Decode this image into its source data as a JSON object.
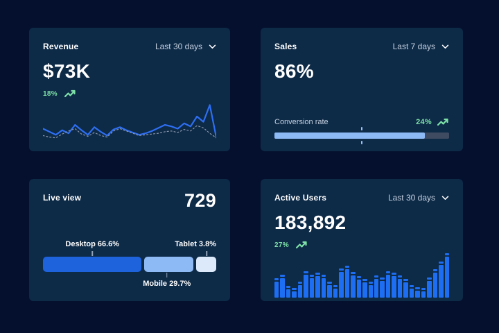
{
  "colors": {
    "page_bg": "#05102e",
    "card_bg": "#0d2a47",
    "line_blue": "#2e6ff2",
    "dotted_gray": "#8a97ab",
    "bar_blue": "#1d6ef2",
    "progress_fill": "#8db9f4",
    "progress_track": "#3f4b61",
    "green": "#7ee2a8",
    "text_primary": "#ffffff",
    "text_secondary": "#c6d2e1"
  },
  "cards": {
    "revenue": {
      "title": "Revenue",
      "range": "Last 30 days",
      "value": "$73K",
      "delta": "18%"
    },
    "sales": {
      "title": "Sales",
      "range": "Last 7 days",
      "value": "86%",
      "metric_label": "Conversion rate",
      "delta": "24%",
      "progress_pct": 86,
      "marker_pct": 50
    },
    "live_view": {
      "title": "Live view",
      "value": "729",
      "segments": [
        {
          "name": "Desktop",
          "label_text": "Desktop 66.6%",
          "value_pct": 66.6,
          "display_width_pct": 57,
          "color": "#1e62dc",
          "label_position": "above",
          "label_align": "center",
          "tick_center_pct": 28.5
        },
        {
          "name": "Mobile",
          "label_text": "Mobile 29.7%",
          "value_pct": 29.7,
          "display_width_pct": 28.5,
          "color": "#8db9f4",
          "label_position": "below",
          "label_align": "center",
          "tick_center_pct": 71.5
        },
        {
          "name": "Tablet",
          "label_text": "Tablet 3.8%",
          "value_pct": 3.8,
          "display_width_pct": 11.5,
          "color": "#dce9fb",
          "label_position": "above",
          "label_align": "right",
          "tick_center_pct": 94.5
        }
      ]
    },
    "active_users": {
      "title": "Active Users",
      "range": "Last 30 days",
      "value": "183,892",
      "delta": "27%"
    }
  },
  "chart_data": [
    {
      "type": "line",
      "title": "Revenue, last 30 days",
      "ylim": [
        0,
        100
      ],
      "grid": false,
      "legend": "none",
      "series": [
        {
          "name": "current",
          "style": "solid",
          "color": "#2e6ff2",
          "values": [
            30,
            22,
            14,
            26,
            18,
            40,
            26,
            14,
            34,
            22,
            12,
            28,
            34,
            26,
            20,
            14,
            18,
            24,
            32,
            40,
            36,
            30,
            44,
            36,
            62,
            48,
            92,
            8
          ]
        },
        {
          "name": "previous",
          "style": "dotted",
          "color": "#8a97ab",
          "values": [
            12,
            8,
            6,
            16,
            24,
            30,
            16,
            10,
            20,
            12,
            8,
            24,
            30,
            24,
            18,
            12,
            14,
            16,
            18,
            22,
            24,
            20,
            28,
            24,
            38,
            32,
            18,
            6
          ]
        }
      ]
    },
    {
      "type": "bar",
      "title": "Active users, last 30 days",
      "color": "#1d6ef2",
      "ylim": [
        0,
        100
      ],
      "values": [
        44,
        52,
        26,
        22,
        36,
        60,
        52,
        56,
        52,
        36,
        28,
        66,
        72,
        58,
        48,
        42,
        36,
        50,
        46,
        60,
        56,
        50,
        42,
        28,
        24,
        22,
        46,
        64,
        82,
        100
      ]
    }
  ]
}
